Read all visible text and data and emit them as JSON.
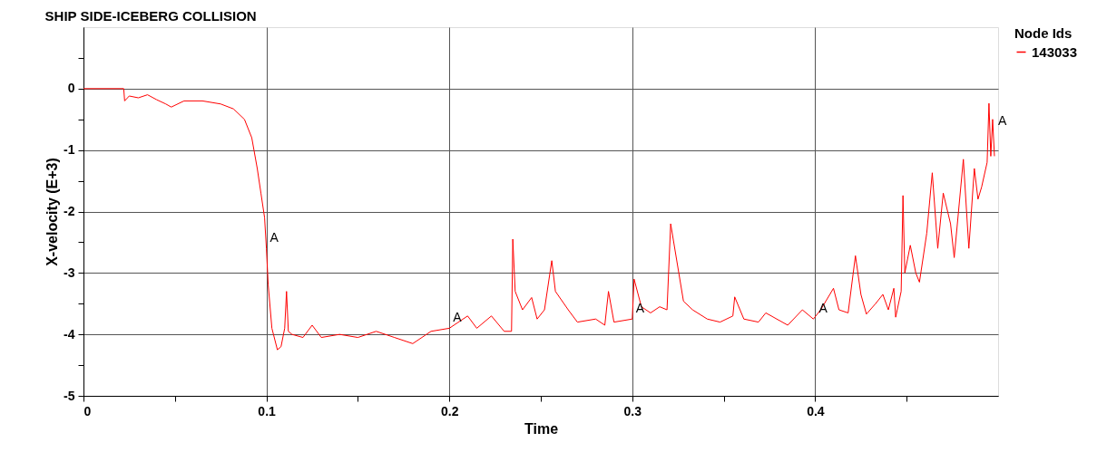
{
  "chart_data": {
    "type": "line",
    "title": "SHIP SIDE-ICEBERG COLLISION",
    "xlabel": "Time",
    "ylabel": "X-velocity (E+3)",
    "legend_title": "Node Ids",
    "legend": "right",
    "grid": true,
    "line_style": "solid",
    "xlim": [
      0,
      0.5
    ],
    "ylim": [
      -5,
      1
    ],
    "xticks": [
      0,
      {
        "value": 0.05,
        "label": null
      },
      0.1,
      {
        "value": 0.15,
        "label": null
      },
      0.2,
      {
        "value": 0.25,
        "label": null
      },
      0.3,
      {
        "value": 0.35,
        "label": null
      },
      0.4,
      {
        "value": 0.45,
        "label": null
      }
    ],
    "yticks": [
      -5,
      {
        "value": -4.5,
        "label": null
      },
      -4,
      {
        "value": -3.5,
        "label": null
      },
      -3,
      {
        "value": -2.5,
        "label": null
      },
      -2,
      {
        "value": -1.5,
        "label": null
      },
      -1,
      {
        "value": -0.5,
        "label": null
      },
      0,
      {
        "value": 0.5,
        "label": null
      }
    ],
    "annotations": [
      {
        "text": "A",
        "x": 0.1,
        "y": -2.6
      },
      {
        "text": "A",
        "x": 0.2,
        "y": -3.9
      },
      {
        "text": "A",
        "x": 0.3,
        "y": -3.75
      },
      {
        "text": "A",
        "x": 0.4,
        "y": -3.75
      },
      {
        "text": "A",
        "x": 0.498,
        "y": -0.7
      }
    ],
    "series": [
      {
        "name": "143033",
        "color": "#ff0000",
        "x": [
          0,
          0.022,
          0.0225,
          0.025,
          0.03,
          0.035,
          0.04,
          0.045,
          0.048,
          0.055,
          0.065,
          0.075,
          0.082,
          0.088,
          0.092,
          0.095,
          0.097,
          0.099,
          0.1,
          0.101,
          0.103,
          0.106,
          0.108,
          0.11,
          0.111,
          0.112,
          0.114,
          0.12,
          0.125,
          0.13,
          0.14,
          0.15,
          0.16,
          0.17,
          0.18,
          0.19,
          0.2,
          0.21,
          0.215,
          0.223,
          0.23,
          0.234,
          0.2347,
          0.236,
          0.24,
          0.245,
          0.248,
          0.252,
          0.256,
          0.258,
          0.265,
          0.27,
          0.28,
          0.285,
          0.287,
          0.29,
          0.3,
          0.301,
          0.305,
          0.31,
          0.315,
          0.319,
          0.321,
          0.328,
          0.333,
          0.341,
          0.348,
          0.355,
          0.356,
          0.361,
          0.369,
          0.373,
          0.385,
          0.393,
          0.399,
          0.403,
          0.41,
          0.413,
          0.418,
          0.422,
          0.425,
          0.428,
          0.433,
          0.437,
          0.44,
          0.443,
          0.444,
          0.447,
          0.448,
          0.449,
          0.452,
          0.455,
          0.457,
          0.461,
          0.464,
          0.467,
          0.47,
          0.474,
          0.476,
          0.481,
          0.484,
          0.487,
          0.489,
          0.491,
          0.494,
          0.495,
          0.496,
          0.497,
          0.498
        ],
        "values": [
          0,
          0,
          -0.2,
          -0.12,
          -0.15,
          -0.1,
          -0.18,
          -0.25,
          -0.3,
          -0.2,
          -0.2,
          -0.25,
          -0.33,
          -0.5,
          -0.8,
          -1.3,
          -1.7,
          -2.1,
          -2.6,
          -3.2,
          -3.9,
          -4.25,
          -4.2,
          -3.9,
          -3.3,
          -3.95,
          -4.0,
          -4.05,
          -3.85,
          -4.05,
          -4.0,
          -4.05,
          -3.95,
          -4.05,
          -4.15,
          -3.95,
          -3.9,
          -3.7,
          -3.9,
          -3.7,
          -3.95,
          -3.95,
          -2.45,
          -3.3,
          -3.6,
          -3.4,
          -3.75,
          -3.6,
          -2.8,
          -3.3,
          -3.6,
          -3.8,
          -3.75,
          -3.85,
          -3.3,
          -3.8,
          -3.75,
          -3.1,
          -3.55,
          -3.65,
          -3.55,
          -3.6,
          -2.2,
          -3.46,
          -3.6,
          -3.75,
          -3.8,
          -3.7,
          -3.39,
          -3.75,
          -3.8,
          -3.65,
          -3.85,
          -3.6,
          -3.75,
          -3.6,
          -3.25,
          -3.6,
          -3.65,
          -2.72,
          -3.35,
          -3.67,
          -3.5,
          -3.35,
          -3.6,
          -3.25,
          -3.72,
          -3.3,
          -1.74,
          -3.0,
          -2.55,
          -3.0,
          -3.15,
          -2.35,
          -1.37,
          -2.6,
          -1.7,
          -2.2,
          -2.75,
          -1.15,
          -2.6,
          -1.3,
          -1.8,
          -1.6,
          -1.2,
          -0.24,
          -1.1,
          -0.5,
          -1.1
        ]
      }
    ]
  }
}
